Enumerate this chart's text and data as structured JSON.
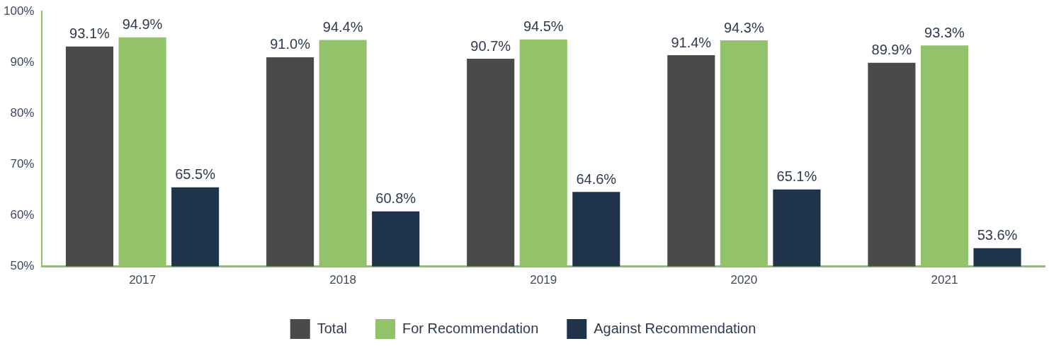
{
  "chart_data": {
    "type": "bar",
    "categories": [
      "2017",
      "2018",
      "2019",
      "2020",
      "2021"
    ],
    "series": [
      {
        "name": "Total",
        "color": "#4a4a4a",
        "values": [
          93.1,
          91.0,
          90.7,
          91.4,
          89.9
        ],
        "value_labels": [
          "93.1%",
          "91.0%",
          "90.7%",
          "91.4%",
          "89.9%"
        ]
      },
      {
        "name": "For Recommendation",
        "color": "#92c36a",
        "values": [
          94.9,
          94.4,
          94.5,
          94.3,
          93.3
        ],
        "value_labels": [
          "94.9%",
          "94.4%",
          "94.5%",
          "94.3%",
          "93.3%"
        ]
      },
      {
        "name": "Against Recommendation",
        "color": "#1f334b",
        "values": [
          65.5,
          60.8,
          64.6,
          65.1,
          53.6
        ],
        "value_labels": [
          "65.5%",
          "60.8%",
          "64.6%",
          "65.1%",
          "53.6%"
        ]
      }
    ],
    "ylim": [
      50,
      100
    ],
    "yticks": [
      {
        "value": 50,
        "label": "50%"
      },
      {
        "value": 60,
        "label": "60%"
      },
      {
        "value": 70,
        "label": "70%"
      },
      {
        "value": 80,
        "label": "80%"
      },
      {
        "value": 90,
        "label": "90%"
      },
      {
        "value": 100,
        "label": "100%"
      }
    ],
    "grid": false,
    "legend": "bottom"
  }
}
